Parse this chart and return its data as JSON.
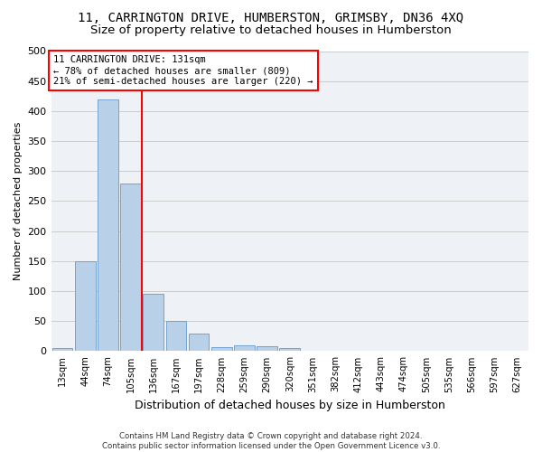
{
  "title_line1": "11, CARRINGTON DRIVE, HUMBERSTON, GRIMSBY, DN36 4XQ",
  "title_line2": "Size of property relative to detached houses in Humberston",
  "xlabel": "Distribution of detached houses by size in Humberston",
  "ylabel": "Number of detached properties",
  "footnote": "Contains HM Land Registry data © Crown copyright and database right 2024.\nContains public sector information licensed under the Open Government Licence v3.0.",
  "bin_labels": [
    "13sqm",
    "44sqm",
    "74sqm",
    "105sqm",
    "136sqm",
    "167sqm",
    "197sqm",
    "228sqm",
    "259sqm",
    "290sqm",
    "320sqm",
    "351sqm",
    "382sqm",
    "412sqm",
    "443sqm",
    "474sqm",
    "505sqm",
    "535sqm",
    "566sqm",
    "597sqm",
    "627sqm"
  ],
  "bar_values": [
    5,
    150,
    420,
    280,
    95,
    50,
    30,
    7,
    10,
    8,
    5,
    0,
    0,
    0,
    0,
    0,
    0,
    0,
    0,
    0,
    0
  ],
  "bar_color": "#b8d0e8",
  "bar_edge_color": "#6699cc",
  "vline_color": "red",
  "vline_xindex": 4,
  "property_label": "11 CARRINGTON DRIVE: 131sqm",
  "annotation_line1": "← 78% of detached houses are smaller (809)",
  "annotation_line2": "21% of semi-detached houses are larger (220) →",
  "annotation_box_color": "red",
  "ylim": [
    0,
    500
  ],
  "yticks": [
    0,
    50,
    100,
    150,
    200,
    250,
    300,
    350,
    400,
    450,
    500
  ],
  "grid_color": "#cccccc",
  "plot_bg_color": "#eef2f7",
  "title_fontsize": 10,
  "subtitle_fontsize": 9.5
}
